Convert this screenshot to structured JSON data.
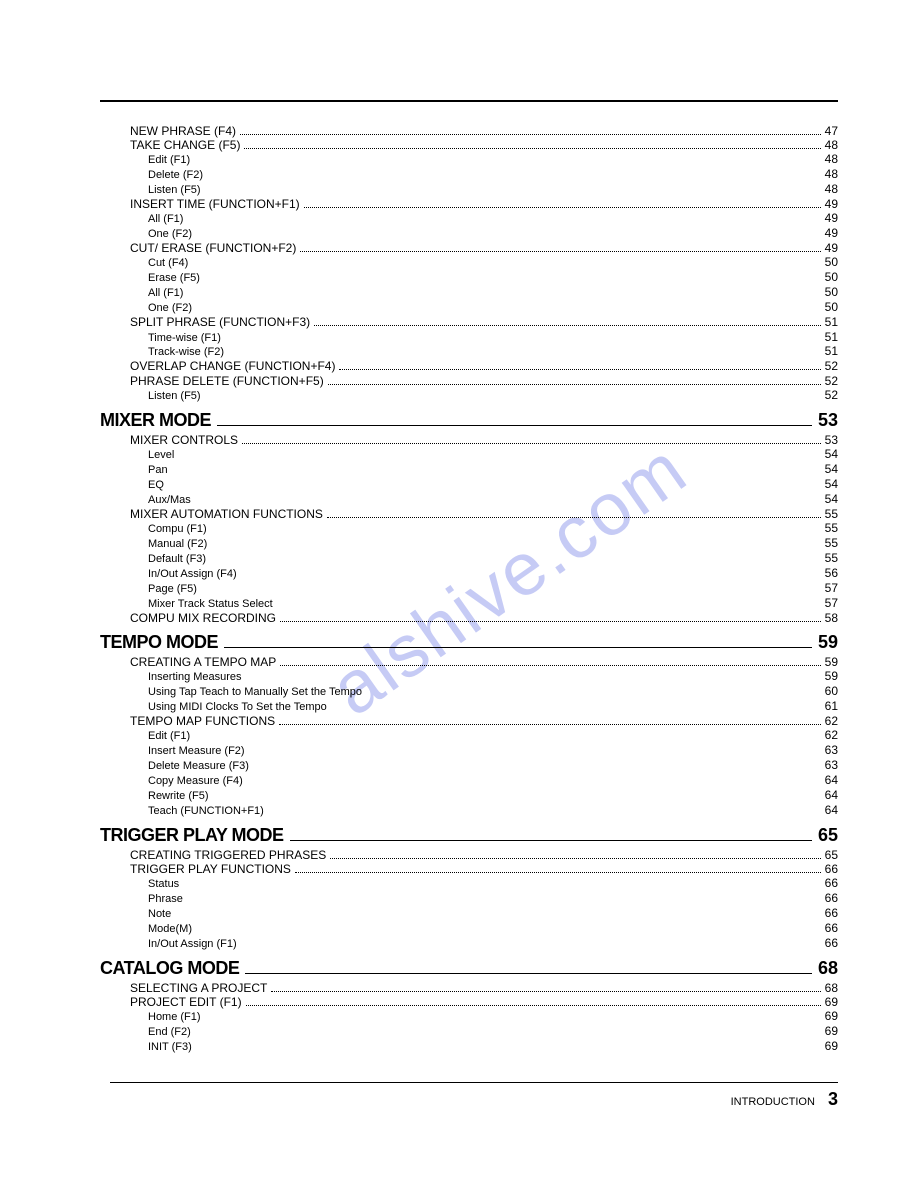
{
  "watermark": "alshive.com",
  "footer_label": "INTRODUCTION",
  "footer_page": "3",
  "toc": [
    {
      "type": "l1",
      "label": "NEW PHRASE (F4)",
      "page": "47",
      "dots": true
    },
    {
      "type": "l1",
      "label": "TAKE CHANGE (F5)",
      "page": "48",
      "dots": true
    },
    {
      "type": "l2",
      "label": "Edit (F1)",
      "page": "48",
      "dots": false
    },
    {
      "type": "l2",
      "label": "Delete (F2)",
      "page": "48",
      "dots": false
    },
    {
      "type": "l2",
      "label": "Listen (F5)",
      "page": "48",
      "dots": false
    },
    {
      "type": "l1",
      "label": "INSERT TIME (FUNCTION+F1)",
      "page": "49",
      "dots": true
    },
    {
      "type": "l2",
      "label": "All (F1)",
      "page": "49",
      "dots": false
    },
    {
      "type": "l2",
      "label": "One (F2)",
      "page": "49",
      "dots": false
    },
    {
      "type": "l1",
      "label": "CUT/ ERASE (FUNCTION+F2)",
      "page": "49",
      "dots": true
    },
    {
      "type": "l2",
      "label": "Cut (F4)",
      "page": "50",
      "dots": false
    },
    {
      "type": "l2",
      "label": "Erase (F5)",
      "page": "50",
      "dots": false
    },
    {
      "type": "l2",
      "label": "All (F1)",
      "page": "50",
      "dots": false
    },
    {
      "type": "l2",
      "label": "One (F2)",
      "page": "50",
      "dots": false
    },
    {
      "type": "l1",
      "label": "SPLIT PHRASE (FUNCTION+F3)",
      "page": "51",
      "dots": true
    },
    {
      "type": "l2",
      "label": "Time-wise (F1)",
      "page": "51",
      "dots": false
    },
    {
      "type": "l2",
      "label": "Track-wise (F2)",
      "page": "51",
      "dots": false
    },
    {
      "type": "l1",
      "label": "OVERLAP CHANGE (FUNCTION+F4)",
      "page": "52",
      "dots": true
    },
    {
      "type": "l1",
      "label": "PHRASE DELETE (FUNCTION+F5)",
      "page": "52",
      "dots": true
    },
    {
      "type": "l2",
      "label": "Listen (F5)",
      "page": "52",
      "dots": false
    },
    {
      "type": "section",
      "label": "MIXER MODE",
      "page": "53"
    },
    {
      "type": "l1",
      "label": "MIXER CONTROLS",
      "page": "53",
      "dots": true
    },
    {
      "type": "l2",
      "label": "Level",
      "page": "54",
      "dots": false
    },
    {
      "type": "l2",
      "label": "Pan",
      "page": "54",
      "dots": false
    },
    {
      "type": "l2",
      "label": "EQ",
      "page": "54",
      "dots": false
    },
    {
      "type": "l2",
      "label": "Aux/Mas",
      "page": "54",
      "dots": false
    },
    {
      "type": "l1",
      "label": "MIXER AUTOMATION FUNCTIONS",
      "page": "55",
      "dots": true
    },
    {
      "type": "l2",
      "label": "Compu (F1)",
      "page": "55",
      "dots": false
    },
    {
      "type": "l2",
      "label": "Manual (F2)",
      "page": "55",
      "dots": false
    },
    {
      "type": "l2",
      "label": "Default (F3)",
      "page": "55",
      "dots": false
    },
    {
      "type": "l2",
      "label": "In/Out Assign (F4)",
      "page": "56",
      "dots": false
    },
    {
      "type": "l2",
      "label": "Page (F5)",
      "page": "57",
      "dots": false
    },
    {
      "type": "l2",
      "label": "Mixer Track Status Select",
      "page": "57",
      "dots": false
    },
    {
      "type": "l1",
      "label": "COMPU MIX RECORDING",
      "page": "58",
      "dots": true
    },
    {
      "type": "section",
      "label": "TEMPO MODE",
      "page": "59"
    },
    {
      "type": "l1",
      "label": "CREATING A TEMPO MAP",
      "page": "59",
      "dots": true
    },
    {
      "type": "l2",
      "label": "Inserting Measures",
      "page": "59",
      "dots": false
    },
    {
      "type": "l2",
      "label": "Using Tap Teach to Manually Set the Tempo",
      "page": "60",
      "dots": false
    },
    {
      "type": "l2",
      "label": "Using MIDI Clocks To Set the Tempo",
      "page": "61",
      "dots": false
    },
    {
      "type": "l1",
      "label": "TEMPO MAP FUNCTIONS",
      "page": "62",
      "dots": true
    },
    {
      "type": "l2",
      "label": "Edit (F1)",
      "page": "62",
      "dots": false
    },
    {
      "type": "l2",
      "label": "Insert Measure (F2)",
      "page": "63",
      "dots": false
    },
    {
      "type": "l2",
      "label": "Delete Measure (F3)",
      "page": "63",
      "dots": false
    },
    {
      "type": "l2",
      "label": "Copy Measure (F4)",
      "page": "64",
      "dots": false
    },
    {
      "type": "l2",
      "label": "Rewrite (F5)",
      "page": "64",
      "dots": false
    },
    {
      "type": "l2",
      "label": "Teach (FUNCTION+F1)",
      "page": "64",
      "dots": false
    },
    {
      "type": "section",
      "label": "TRIGGER PLAY MODE",
      "page": "65"
    },
    {
      "type": "l1",
      "label": "CREATING TRIGGERED PHRASES",
      "page": "65",
      "dots": true
    },
    {
      "type": "l1",
      "label": "TRIGGER PLAY FUNCTIONS",
      "page": "66",
      "dots": true
    },
    {
      "type": "l2",
      "label": "Status",
      "page": "66",
      "dots": false
    },
    {
      "type": "l2",
      "label": "Phrase",
      "page": "66",
      "dots": false
    },
    {
      "type": "l2",
      "label": "Note",
      "page": "66",
      "dots": false
    },
    {
      "type": "l2",
      "label": "Mode(M)",
      "page": "66",
      "dots": false
    },
    {
      "type": "l2",
      "label": "In/Out Assign (F1)",
      "page": "66",
      "dots": false
    },
    {
      "type": "section",
      "label": "CATALOG MODE",
      "page": "68"
    },
    {
      "type": "l1",
      "label": "SELECTING A PROJECT",
      "page": "68",
      "dots": true
    },
    {
      "type": "l1",
      "label": "PROJECT EDIT (F1)",
      "page": "69",
      "dots": true
    },
    {
      "type": "l2",
      "label": "Home (F1)",
      "page": "69",
      "dots": false
    },
    {
      "type": "l2",
      "label": "End (F2)",
      "page": "69",
      "dots": false
    },
    {
      "type": "l2",
      "label": "INIT (F3)",
      "page": "69",
      "dots": false
    }
  ]
}
